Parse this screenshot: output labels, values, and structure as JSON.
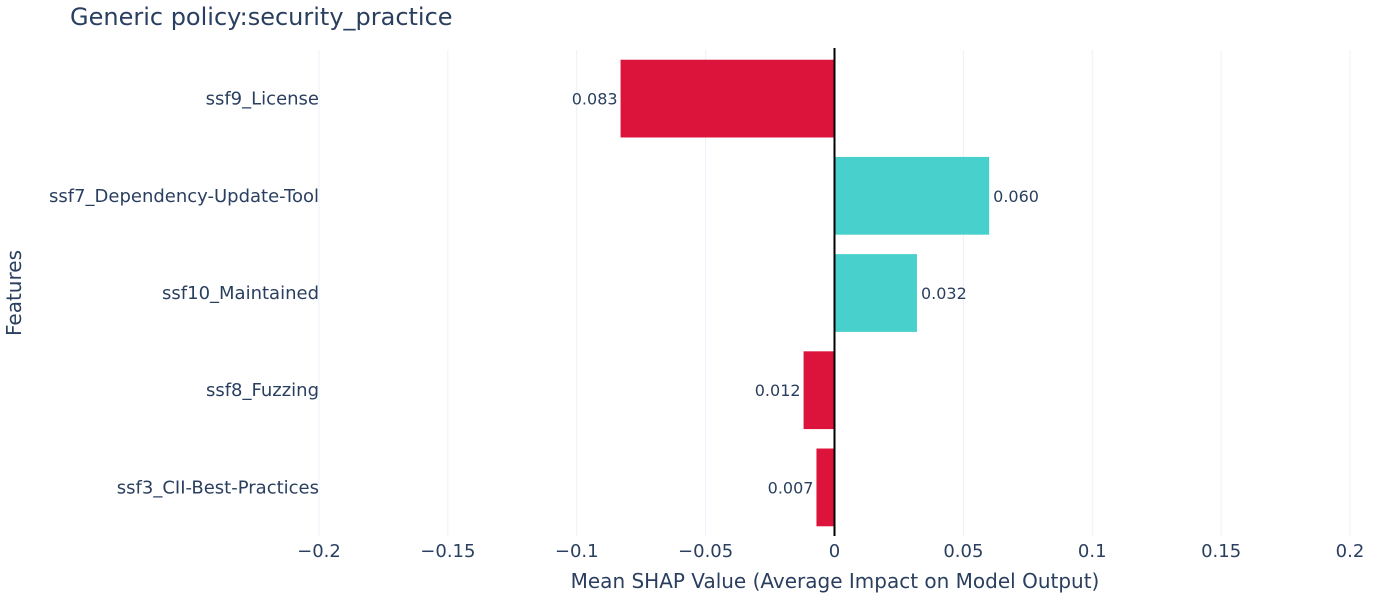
{
  "chart_data": {
    "type": "bar",
    "orientation": "horizontal",
    "title": "Generic policy:security_practice",
    "xlabel": "Mean SHAP Value (Average Impact on Model Output)",
    "ylabel": "Features",
    "xlim": [
      -0.2,
      0.2
    ],
    "xticks": [
      -0.2,
      -0.15,
      -0.1,
      -0.05,
      0,
      0.05,
      0.1,
      0.15,
      0.2
    ],
    "xtick_labels": [
      "−0.2",
      "−0.15",
      "−0.1",
      "−0.05",
      "0",
      "0.05",
      "0.1",
      "0.15",
      "0.2"
    ],
    "grid": true,
    "categories": [
      "ssf9_License",
      "ssf7_Dependency-Update-Tool",
      "ssf10_Maintained",
      "ssf8_Fuzzing",
      "ssf3_CII-Best-Practices"
    ],
    "values": [
      -0.083,
      0.06,
      0.032,
      -0.012,
      -0.007
    ],
    "labels": [
      "0.083",
      "0.060",
      "0.032",
      "0.012",
      "0.007"
    ],
    "colors": {
      "negative": "#dc143c",
      "positive": "#48d1cc"
    }
  }
}
